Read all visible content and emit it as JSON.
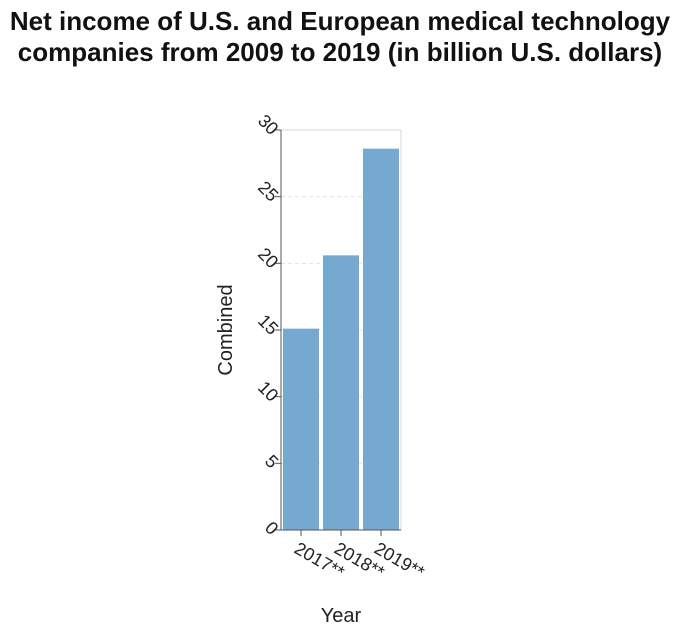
{
  "chart_data": {
    "type": "bar",
    "title": "Net income of U.S. and European medical technology companies from 2009 to 2019 (in billion U.S. dollars)",
    "xlabel": "Year",
    "ylabel": "Combined",
    "categories": [
      "2017**",
      "2018**",
      "2019**"
    ],
    "values": [
      15.1,
      20.6,
      28.6
    ],
    "ylim": [
      0,
      30
    ],
    "yticks": [
      "0",
      "5",
      "10",
      "15",
      "20",
      "25",
      "30"
    ],
    "grid": true,
    "bar_color": "#75a9d0"
  }
}
